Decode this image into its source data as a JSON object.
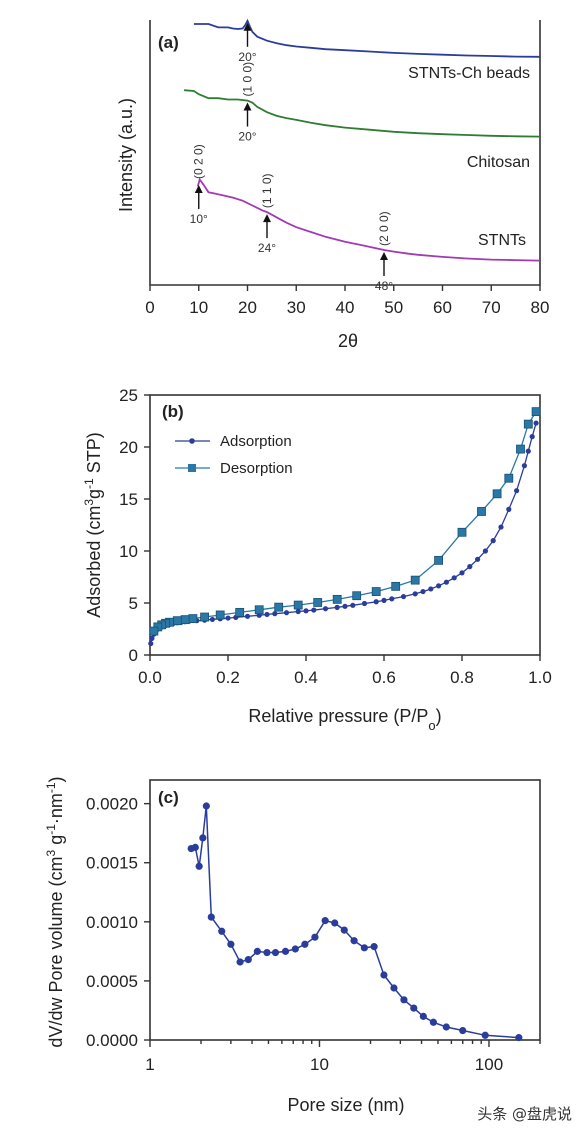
{
  "watermark": "头条 @盘虎说",
  "chart_data": [
    {
      "panel": "(a)",
      "type": "line",
      "xlabel": "2θ",
      "ylabel": "Intensity (a.u.)",
      "xlim": [
        0,
        80
      ],
      "xticks": [
        0,
        10,
        20,
        30,
        40,
        50,
        60,
        70,
        80
      ],
      "yticks_shown": false,
      "series": [
        {
          "name": "STNTs-Ch beads",
          "color": "#2b3d9b",
          "x": [
            9,
            12,
            14,
            16,
            17,
            18,
            19,
            19.5,
            20,
            20.5,
            21,
            22,
            24,
            26,
            28,
            30,
            33,
            36,
            40,
            45,
            50,
            55,
            60,
            65,
            70,
            75,
            80
          ],
          "y": [
            0.985,
            0.985,
            0.972,
            0.972,
            0.968,
            0.966,
            0.968,
            0.98,
            0.997,
            0.975,
            0.955,
            0.937,
            0.922,
            0.912,
            0.905,
            0.9,
            0.895,
            0.89,
            0.886,
            0.881,
            0.876,
            0.872,
            0.869,
            0.866,
            0.864,
            0.862,
            0.861
          ]
        },
        {
          "name": "Chitosan",
          "color": "#2e7d32",
          "x": [
            7,
            9,
            10,
            12,
            14,
            16,
            18,
            20,
            21,
            22,
            24,
            26,
            28,
            30,
            33,
            36,
            40,
            45,
            50,
            55,
            60,
            65,
            70,
            75,
            80
          ],
          "y": [
            0.735,
            0.732,
            0.72,
            0.705,
            0.705,
            0.7,
            0.7,
            0.696,
            0.688,
            0.672,
            0.652,
            0.638,
            0.63,
            0.623,
            0.612,
            0.603,
            0.594,
            0.586,
            0.578,
            0.573,
            0.569,
            0.566,
            0.563,
            0.561,
            0.56
          ]
        },
        {
          "name": "STNTs",
          "color": "#a33ab5",
          "x": [
            9.8,
            10.2,
            11,
            12,
            13,
            15,
            17,
            19,
            21,
            23,
            24,
            26,
            28,
            30,
            33,
            36,
            40,
            44,
            48,
            50,
            53,
            55,
            60,
            65,
            70,
            75,
            80
          ],
          "y": [
            0.372,
            0.398,
            0.378,
            0.35,
            0.346,
            0.338,
            0.33,
            0.318,
            0.3,
            0.282,
            0.275,
            0.255,
            0.235,
            0.218,
            0.2,
            0.182,
            0.163,
            0.148,
            0.132,
            0.126,
            0.118,
            0.114,
            0.106,
            0.1,
            0.096,
            0.094,
            0.092
          ]
        }
      ],
      "annotations": [
        {
          "series": "STNTs-Ch beads",
          "x": 20,
          "angle": "20°",
          "hkl": ""
        },
        {
          "series": "Chitosan",
          "x": 20,
          "angle": "20°",
          "hkl": "(1 0 0)"
        },
        {
          "series": "STNTs",
          "x": 10,
          "angle": "10°",
          "hkl": "(0 2 0)"
        },
        {
          "series": "STNTs",
          "x": 24,
          "angle": "24°",
          "hkl": "(1 1 0)"
        },
        {
          "series": "STNTs",
          "x": 48,
          "angle": "48°",
          "hkl": "(2 0 0)"
        }
      ]
    },
    {
      "panel": "(b)",
      "type": "line",
      "xlabel": "Relative pressure (P/Po)",
      "ylabel": "Adsorbed (cm3g-1 STP)",
      "xlim": [
        0.0,
        1.0
      ],
      "ylim": [
        0,
        25
      ],
      "xticks": [
        0.0,
        0.2,
        0.4,
        0.6,
        0.8,
        1.0
      ],
      "yticks": [
        0,
        5,
        10,
        15,
        20,
        25
      ],
      "legend": "top-left",
      "series": [
        {
          "name": "Adsorption",
          "color": "#2b3d9b",
          "marker": "circle",
          "x": [
            0.002,
            0.005,
            0.01,
            0.015,
            0.02,
            0.03,
            0.04,
            0.05,
            0.06,
            0.07,
            0.08,
            0.09,
            0.1,
            0.12,
            0.14,
            0.16,
            0.18,
            0.2,
            0.22,
            0.25,
            0.28,
            0.3,
            0.32,
            0.35,
            0.38,
            0.4,
            0.42,
            0.45,
            0.48,
            0.5,
            0.52,
            0.55,
            0.58,
            0.6,
            0.62,
            0.65,
            0.68,
            0.7,
            0.72,
            0.74,
            0.76,
            0.78,
            0.8,
            0.82,
            0.84,
            0.86,
            0.88,
            0.9,
            0.92,
            0.94,
            0.96,
            0.97,
            0.98,
            0.99
          ],
          "y": [
            1.1,
            1.6,
            2.0,
            2.3,
            2.5,
            2.7,
            2.85,
            2.95,
            3.05,
            3.1,
            3.15,
            3.2,
            3.25,
            3.3,
            3.35,
            3.42,
            3.48,
            3.55,
            3.62,
            3.72,
            3.82,
            3.9,
            3.97,
            4.07,
            4.18,
            4.25,
            4.32,
            4.45,
            4.58,
            4.68,
            4.78,
            4.95,
            5.12,
            5.25,
            5.4,
            5.62,
            5.88,
            6.1,
            6.35,
            6.65,
            7.0,
            7.42,
            7.9,
            8.5,
            9.2,
            10.0,
            11.0,
            12.3,
            14.0,
            15.8,
            18.2,
            19.6,
            21.0,
            22.3
          ]
        },
        {
          "name": "Desorption",
          "color": "#2a78a8",
          "marker": "square",
          "x": [
            0.99,
            0.97,
            0.95,
            0.92,
            0.89,
            0.85,
            0.8,
            0.74,
            0.68,
            0.63,
            0.58,
            0.53,
            0.48,
            0.43,
            0.38,
            0.33,
            0.28,
            0.23,
            0.18,
            0.14,
            0.11,
            0.09,
            0.07,
            0.05,
            0.04,
            0.03,
            0.02,
            0.01
          ],
          "y": [
            23.4,
            22.2,
            19.8,
            17.0,
            15.5,
            13.8,
            11.8,
            9.1,
            7.2,
            6.6,
            6.1,
            5.7,
            5.35,
            5.05,
            4.8,
            4.6,
            4.35,
            4.1,
            3.85,
            3.65,
            3.5,
            3.4,
            3.3,
            3.15,
            3.05,
            2.9,
            2.7,
            2.3
          ]
        }
      ]
    },
    {
      "panel": "(c)",
      "type": "line",
      "xlabel": "Pore size (nm)",
      "ylabel": "dV/dw Pore volume (cm3 g-1 nm-1)",
      "xscale": "log",
      "xlim": [
        1,
        200
      ],
      "ylim": [
        0.0,
        0.0022
      ],
      "xticks": [
        1,
        10,
        100
      ],
      "yticks": [
        0.0,
        0.0005,
        0.001,
        0.0015,
        0.002
      ],
      "ytick_labels": [
        "0.0000",
        "0.0005",
        "0.0010",
        "0.0015",
        "0.0020"
      ],
      "series": [
        {
          "name": "",
          "color": "#2b3d9b",
          "marker": "circle",
          "x": [
            1.75,
            1.85,
            1.95,
            2.05,
            2.15,
            2.3,
            2.65,
            3.0,
            3.4,
            3.8,
            4.3,
            4.9,
            5.5,
            6.3,
            7.2,
            8.2,
            9.4,
            10.8,
            12.3,
            14.0,
            16.0,
            18.4,
            21.0,
            24.0,
            27.5,
            31.5,
            36.0,
            41.0,
            47.0,
            56.0,
            70.0,
            95.0,
            150.0
          ],
          "y": [
            0.00162,
            0.00163,
            0.00147,
            0.00171,
            0.00198,
            0.00104,
            0.00092,
            0.00081,
            0.00066,
            0.00068,
            0.00075,
            0.00074,
            0.00074,
            0.00075,
            0.00077,
            0.00081,
            0.00087,
            0.00101,
            0.00099,
            0.00093,
            0.00084,
            0.00078,
            0.00079,
            0.00055,
            0.00044,
            0.00034,
            0.00027,
            0.0002,
            0.00015,
            0.00011,
            8e-05,
            4e-05,
            2e-05
          ]
        }
      ]
    }
  ]
}
